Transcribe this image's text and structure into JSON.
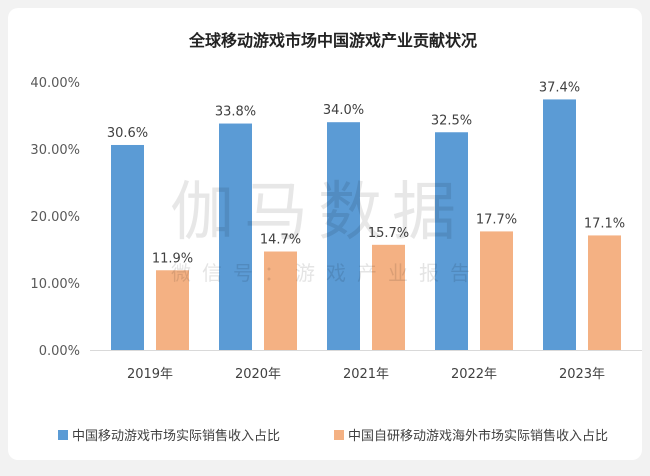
{
  "chart_data": {
    "type": "bar",
    "title": "全球移动游戏市场中国游戏产业贡献状况",
    "categories": [
      "2019年",
      "2020年",
      "2021年",
      "2022年",
      "2023年"
    ],
    "series": [
      {
        "name": "中国移动游戏市场实际销售收入占比",
        "color": "#5b9bd5",
        "values": [
          30.6,
          33.8,
          34.0,
          32.5,
          37.4
        ],
        "labels": [
          "30.6%",
          "33.8%",
          "34.0%",
          "32.5%",
          "37.4%"
        ]
      },
      {
        "name": "中国自研移动游戏海外市场实际销售收入占比",
        "color": "#f4b183",
        "values": [
          11.9,
          14.7,
          15.7,
          17.7,
          17.1
        ],
        "labels": [
          "11.9%",
          "14.7%",
          "15.7%",
          "17.7%",
          "17.1%"
        ]
      }
    ],
    "ylim": [
      0,
      40
    ],
    "yticks": [
      "0.00%",
      "10.00%",
      "20.00%",
      "30.00%",
      "40.00%"
    ],
    "grid": false,
    "legend": "bottom-left"
  },
  "watermark": {
    "main": "伽马数据",
    "sub": "微信号：游戏产业报告"
  }
}
